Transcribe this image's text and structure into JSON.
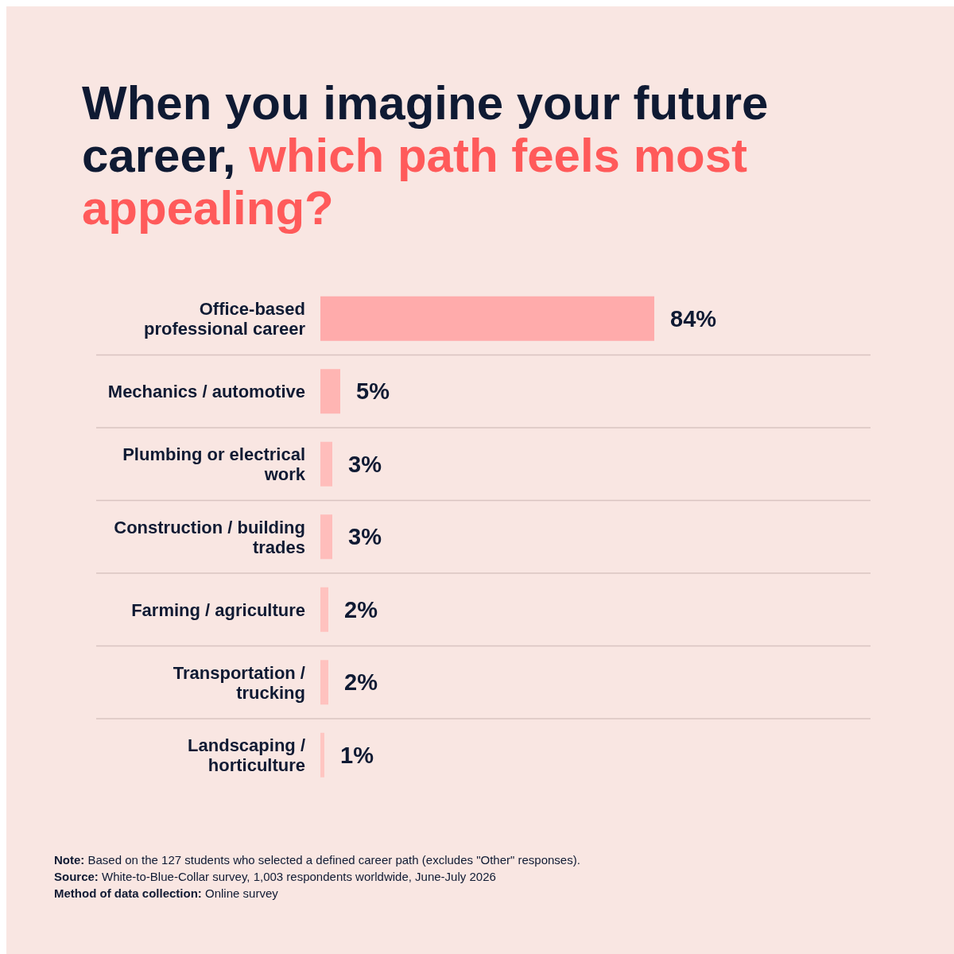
{
  "chart_data": {
    "type": "bar",
    "orientation": "horizontal",
    "title": "When you imagine your future career, which path feels most appealing?",
    "categories": [
      "Office-based professional career",
      "Mechanics / automotive",
      "Plumbing or electrical work",
      "Construction / building trades",
      "Farming / agriculture",
      "Transportation / trucking",
      "Landscaping / horticulture"
    ],
    "values": [
      84,
      5,
      3,
      3,
      2,
      2,
      1
    ],
    "colors": [
      "#ffabab",
      "#ffb5b3",
      "#ffbdbb",
      "#ffbdbb",
      "#ffc2bf",
      "#ffc2bf",
      "#ffc6c2"
    ],
    "value_labels": [
      "84%",
      "5%",
      "3%",
      "3%",
      "2%",
      "2%",
      "1%"
    ],
    "annotations": [
      "Note: Based on the 127 students who selected a defined career path (excludes \"Other\" responses).",
      "Source: White-to-Blue-Collar survey, 1,003 respondents worldwide, June-July 2026",
      "Method of data collection: Online survey"
    ]
  }
}
